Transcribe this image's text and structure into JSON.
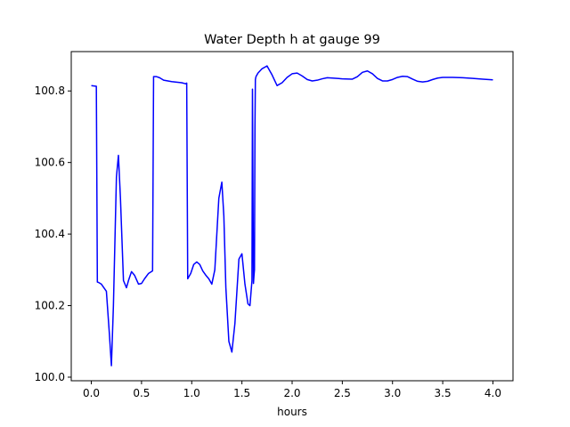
{
  "chart_data": {
    "type": "line",
    "title": "Water Depth h at gauge 99",
    "xlabel": "hours",
    "ylabel": "",
    "xlim": [
      -0.2,
      4.2
    ],
    "ylim": [
      99.99,
      100.91
    ],
    "xticks": [
      0.0,
      0.5,
      1.0,
      1.5,
      2.0,
      2.5,
      3.0,
      3.5,
      4.0
    ],
    "xtick_labels": [
      "0.0",
      "0.5",
      "1.0",
      "1.5",
      "2.0",
      "2.5",
      "3.0",
      "3.5",
      "4.0"
    ],
    "yticks": [
      100.0,
      100.2,
      100.4,
      100.6,
      100.8
    ],
    "ytick_labels": [
      "100.0",
      "100.2",
      "100.4",
      "100.6",
      "100.8"
    ],
    "grid": false,
    "series": [
      {
        "color": "#0000ff",
        "x": [
          0.0,
          0.05,
          0.06,
          0.07,
          0.1,
          0.15,
          0.18,
          0.2,
          0.22,
          0.25,
          0.27,
          0.29,
          0.32,
          0.35,
          0.37,
          0.4,
          0.43,
          0.47,
          0.5,
          0.53,
          0.57,
          0.61,
          0.62,
          0.65,
          0.68,
          0.72,
          0.8,
          0.9,
          0.94,
          0.95,
          0.96,
          0.99,
          1.02,
          1.05,
          1.08,
          1.11,
          1.14,
          1.17,
          1.2,
          1.23,
          1.25,
          1.27,
          1.3,
          1.32,
          1.34,
          1.37,
          1.4,
          1.43,
          1.47,
          1.5,
          1.53,
          1.56,
          1.58,
          1.6,
          1.605,
          1.615,
          1.62,
          1.625,
          1.63,
          1.634,
          1.64,
          1.66,
          1.7,
          1.75,
          1.8,
          1.85,
          1.9,
          1.95,
          2.0,
          2.05,
          2.1,
          2.15,
          2.2,
          2.25,
          2.3,
          2.35,
          2.4,
          2.5,
          2.6,
          2.65,
          2.7,
          2.75,
          2.8,
          2.85,
          2.9,
          2.95,
          3.0,
          3.05,
          3.1,
          3.15,
          3.2,
          3.25,
          3.3,
          3.35,
          3.4,
          3.45,
          3.5,
          3.6,
          3.7,
          3.8,
          3.9,
          4.0
        ],
        "y": [
          100.815,
          100.813,
          100.266,
          100.265,
          100.26,
          100.24,
          100.12,
          100.032,
          100.2,
          100.56,
          100.62,
          100.5,
          100.27,
          100.25,
          100.27,
          100.295,
          100.285,
          100.26,
          100.262,
          100.275,
          100.29,
          100.297,
          100.84,
          100.84,
          100.837,
          100.83,
          100.826,
          100.823,
          100.82,
          100.822,
          100.275,
          100.29,
          100.315,
          100.322,
          100.315,
          100.297,
          100.285,
          100.275,
          100.26,
          100.3,
          100.4,
          100.5,
          100.545,
          100.45,
          100.25,
          100.1,
          100.07,
          100.15,
          100.33,
          100.345,
          100.26,
          100.205,
          100.2,
          100.27,
          100.805,
          100.262,
          100.283,
          100.3,
          100.7,
          100.832,
          100.84,
          100.85,
          100.862,
          100.87,
          100.845,
          100.815,
          100.823,
          100.838,
          100.848,
          100.85,
          100.842,
          100.832,
          100.828,
          100.83,
          100.834,
          100.837,
          100.836,
          100.834,
          100.833,
          100.84,
          100.852,
          100.856,
          100.848,
          100.835,
          100.828,
          100.828,
          100.832,
          100.838,
          100.841,
          100.84,
          100.833,
          100.827,
          100.825,
          100.827,
          100.832,
          100.836,
          100.838,
          100.838,
          100.837,
          100.835,
          100.833,
          100.831
        ]
      }
    ]
  }
}
